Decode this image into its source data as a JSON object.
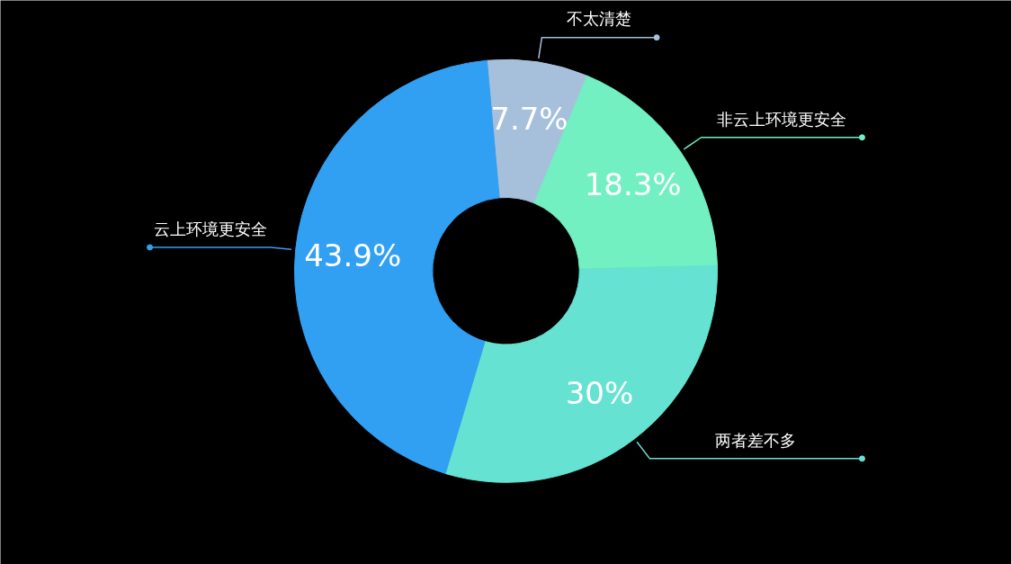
{
  "chart_data": {
    "type": "donut",
    "categories": [
      "不太清楚",
      "非云上环境更安全",
      "两者差不多",
      "云上环境更安全"
    ],
    "values": [
      7.7,
      18.3,
      30,
      43.9
    ],
    "colors": [
      "#a6c0dc",
      "#72f0c2",
      "#66e2d2",
      "#32a0f2"
    ],
    "value_labels": [
      "7.7%",
      "18.3%",
      "30%",
      "43.9%"
    ]
  }
}
